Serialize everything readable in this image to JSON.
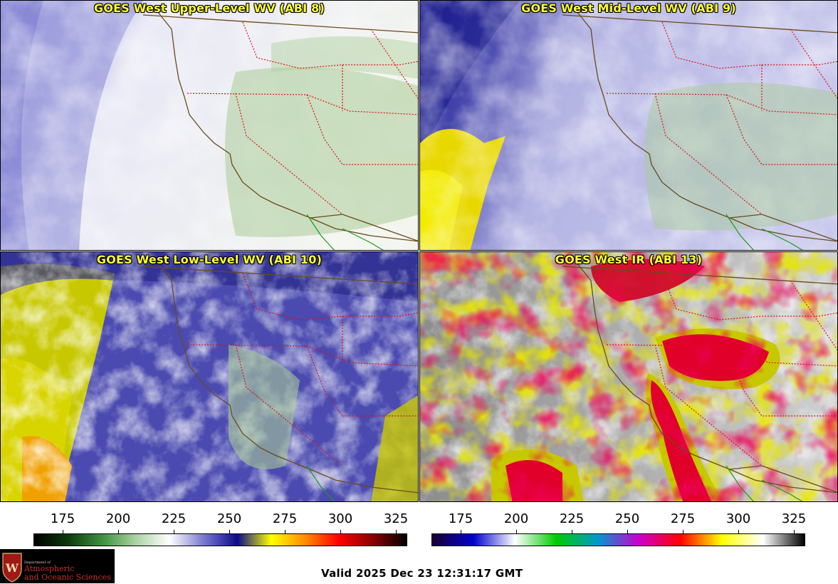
{
  "panels": {
    "upper": {
      "title": "GOES West Upper-Level WV (ABI 8)"
    },
    "mid": {
      "title": "GOES West Mid-Level WV (ABI 9)"
    },
    "low": {
      "title": "GOES West Low-Level WV (ABI 10)"
    },
    "ir": {
      "title": "GOES West IR (ABI 13)"
    }
  },
  "wv_scale": {
    "ticks": [
      "175",
      "200",
      "225",
      "250",
      "275",
      "300",
      "325"
    ],
    "colors": [
      "#000000",
      "#0b3b0b",
      "#3f8f3f",
      "#a9d3a0",
      "#ffffff",
      "#7a7ad0",
      "#0a0a8a",
      "#ffff00",
      "#ff8c00",
      "#ff0000",
      "#8b0000",
      "#000000"
    ]
  },
  "ir_scale": {
    "ticks": [
      "175",
      "200",
      "225",
      "250",
      "275",
      "300",
      "325"
    ],
    "colors": [
      "#1a0033",
      "#0000cc",
      "#ffffff",
      "#00cc00",
      "#0099cc",
      "#cc00cc",
      "#ff0000",
      "#ffff00",
      "#ffffff",
      "#000000"
    ]
  },
  "logo": {
    "dept": "Department of",
    "line1": "Atmospheric",
    "line2": "and Oceanic Sciences"
  },
  "footer": {
    "valid": "Valid 2025 Dec 23 12:31:17 GMT"
  }
}
